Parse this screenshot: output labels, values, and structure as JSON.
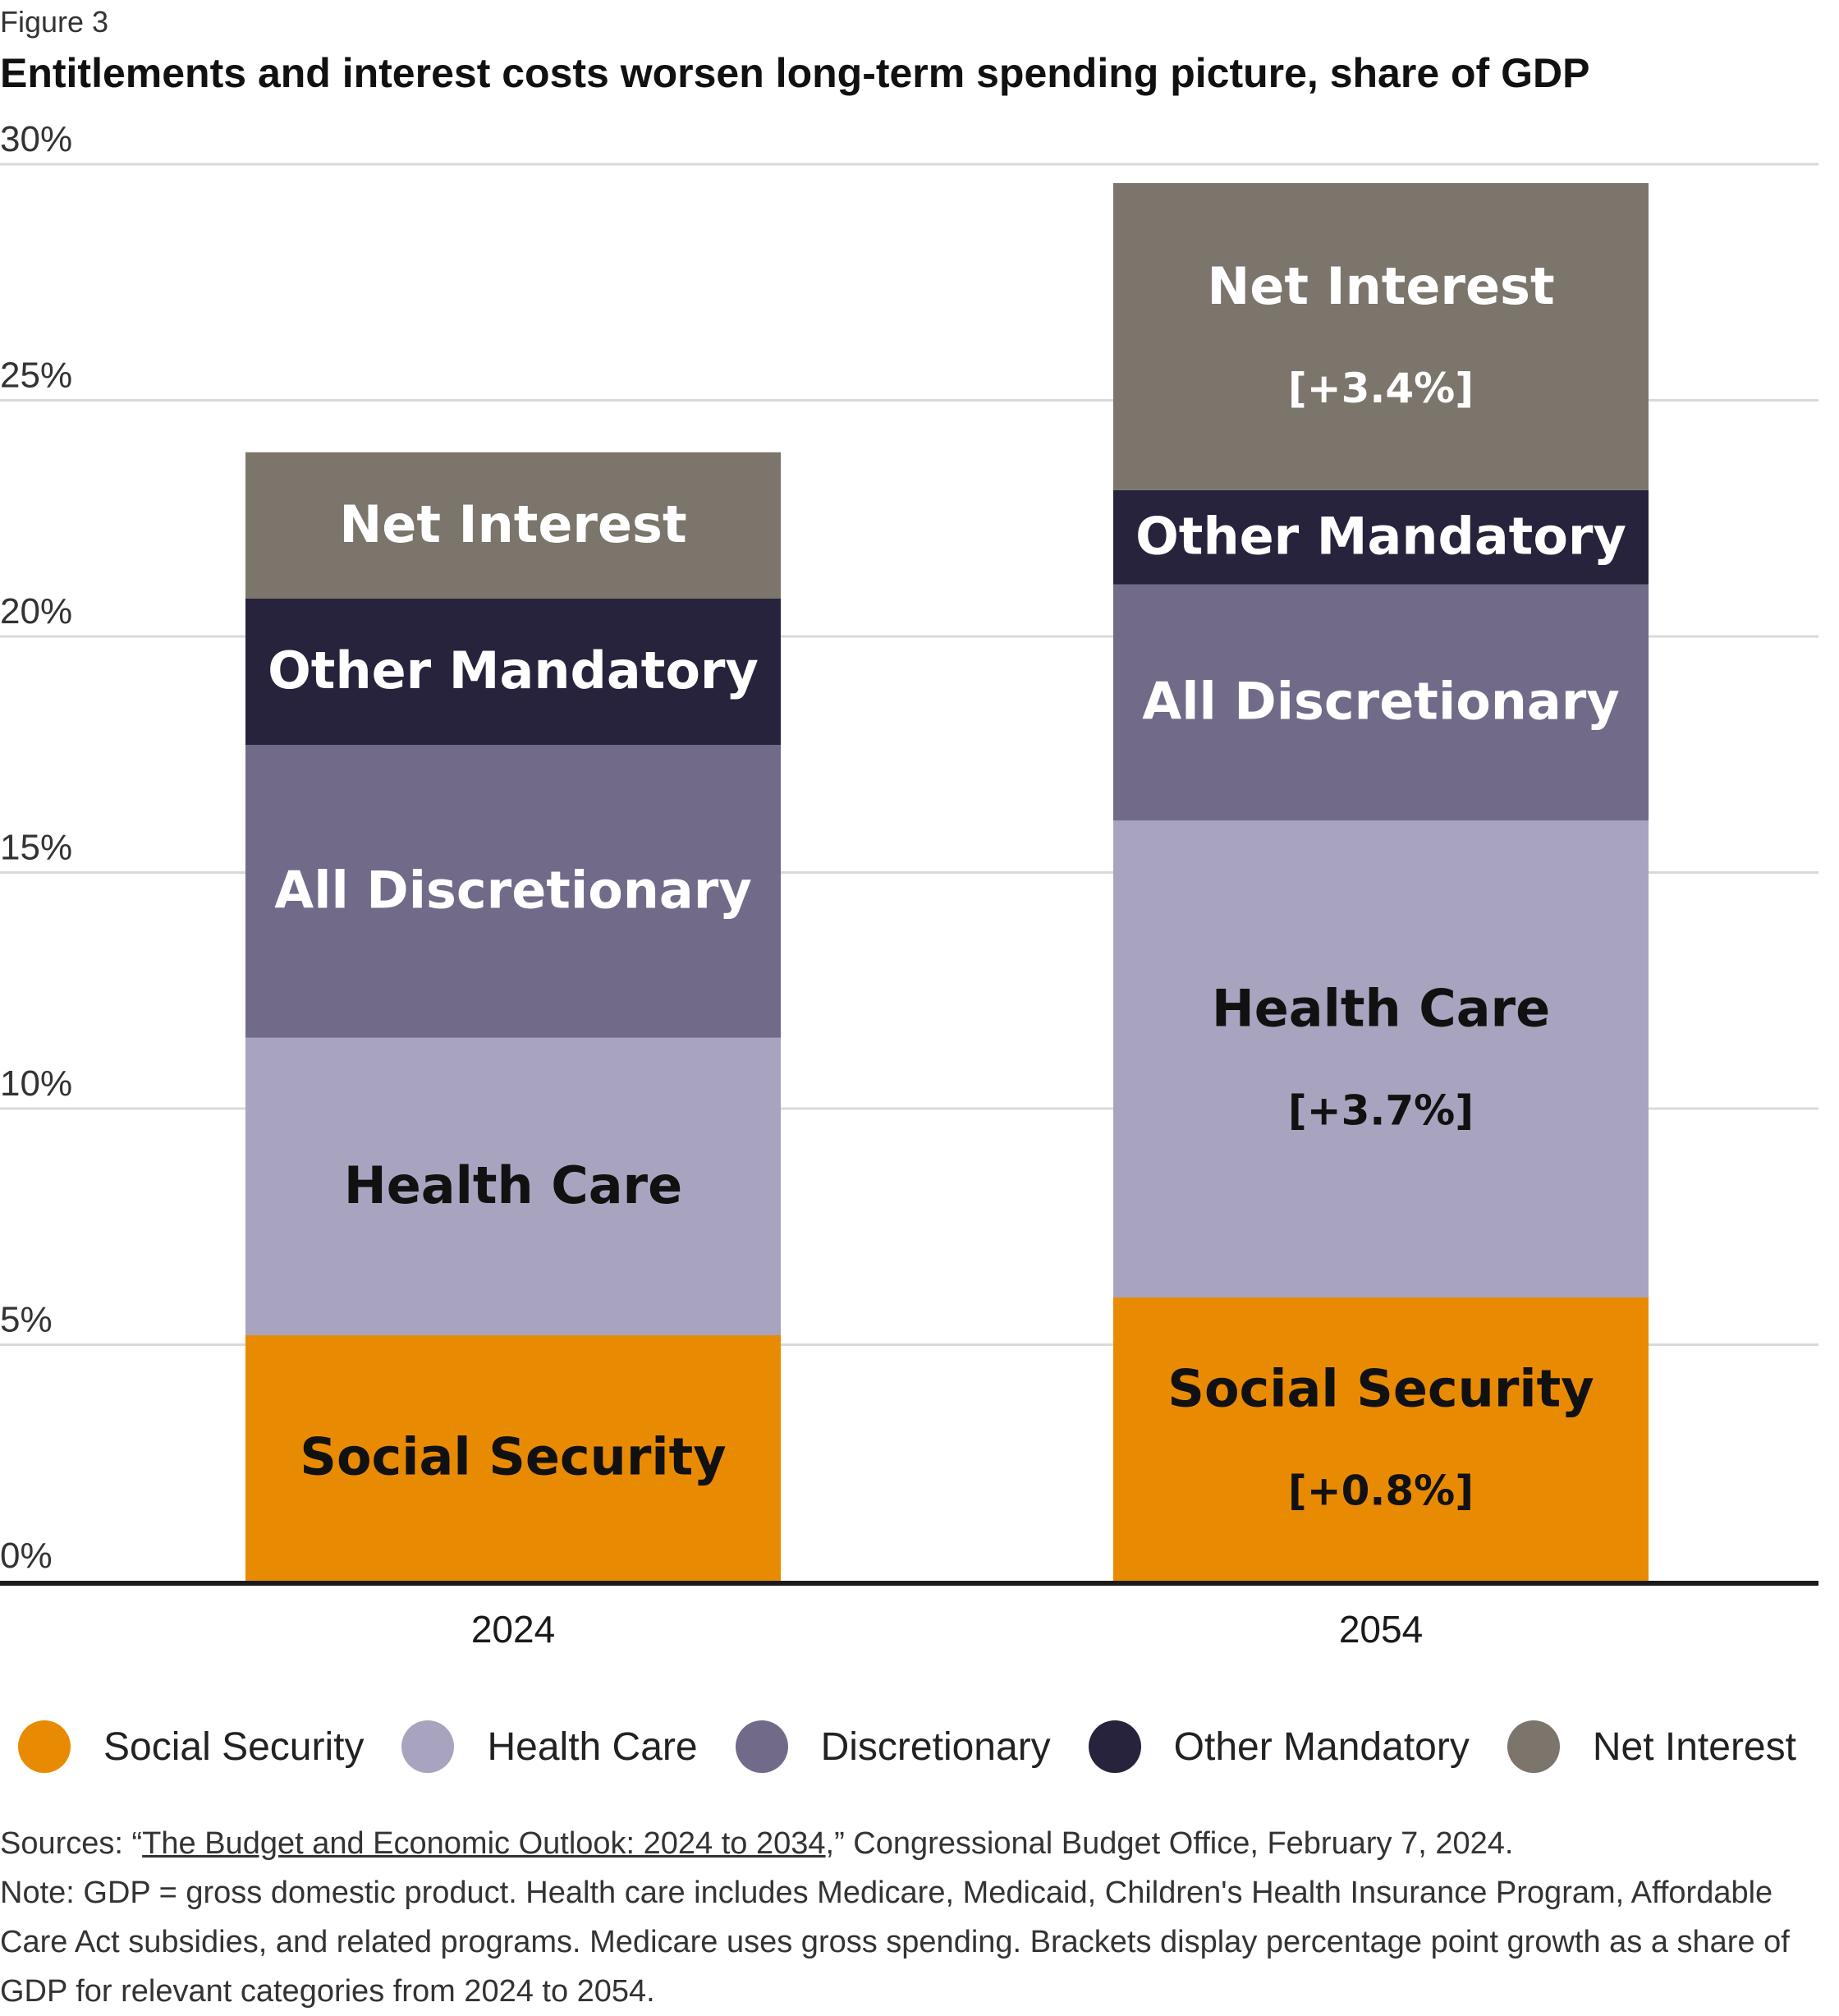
{
  "figure_label": "Figure 3",
  "title": "Entitlements and interest costs worsen long-term spending picture, share of GDP",
  "colors": {
    "social_security": "#E98A03",
    "health_care": "#A8A4BF",
    "discretionary": "#716A88",
    "other_mandatory": "#27233C",
    "net_interest": "#7C756B",
    "gridline": "#d9d9d9",
    "axis": "#1a1a1a"
  },
  "chart_data": {
    "type": "bar",
    "stacked": true,
    "categories": [
      "2024",
      "2054"
    ],
    "ylim": [
      0,
      30
    ],
    "yticks": [
      "0%",
      "5%",
      "10%",
      "15%",
      "20%",
      "25%",
      "30%"
    ],
    "grid": true,
    "legend_position": "bottom",
    "series": [
      {
        "name": "Social Security",
        "color_key": "social_security",
        "values": [
          5.2,
          6.0
        ],
        "segment_labels": [
          "Social Security",
          "Social Security"
        ],
        "text_color": "#111111",
        "deltas": [
          "",
          "[+0.8%]"
        ]
      },
      {
        "name": "Health Care",
        "color_key": "health_care",
        "values": [
          6.3,
          10.1
        ],
        "segment_labels": [
          "Health Care",
          "Health Care"
        ],
        "text_color": "#111111",
        "deltas": [
          "",
          "[+3.7%]"
        ]
      },
      {
        "name": "Discretionary",
        "color_key": "discretionary",
        "values": [
          6.2,
          5.0
        ],
        "segment_labels": [
          "All Discretionary",
          "All Discretionary"
        ],
        "text_color": "#ffffff",
        "deltas": [
          "",
          ""
        ]
      },
      {
        "name": "Other Mandatory",
        "color_key": "other_mandatory",
        "values": [
          3.1,
          2.0
        ],
        "segment_labels": [
          "Other Mandatory",
          "Other Mandatory"
        ],
        "text_color": "#ffffff",
        "deltas": [
          "",
          ""
        ]
      },
      {
        "name": "Net Interest",
        "color_key": "net_interest",
        "values": [
          3.1,
          6.5
        ],
        "segment_labels": [
          "Net Interest",
          "Net Interest"
        ],
        "text_color": "#ffffff",
        "deltas": [
          "",
          "[+3.4%]"
        ]
      }
    ]
  },
  "legend": [
    {
      "label": "Social Security",
      "color_key": "social_security"
    },
    {
      "label": "Health Care",
      "color_key": "health_care"
    },
    {
      "label": "Discretionary",
      "color_key": "discretionary"
    },
    {
      "label": "Other Mandatory",
      "color_key": "other_mandatory"
    },
    {
      "label": "Net Interest",
      "color_key": "net_interest"
    }
  ],
  "sources": {
    "prefix": "Sources: “",
    "link_text": "The Budget and Economic Outlook: 2024 to 2034",
    "suffix": ",” Congressional Budget Office, February 7, 2024."
  },
  "note": "Note: GDP = gross domestic product. Health care includes Medicare, Medicaid, Children's Health Insurance Program, Affordable Care Act subsidies, and related programs. Medicare uses gross spending. Brackets display percentage point growth as a share of GDP for relevant categories from 2024 to 2054."
}
